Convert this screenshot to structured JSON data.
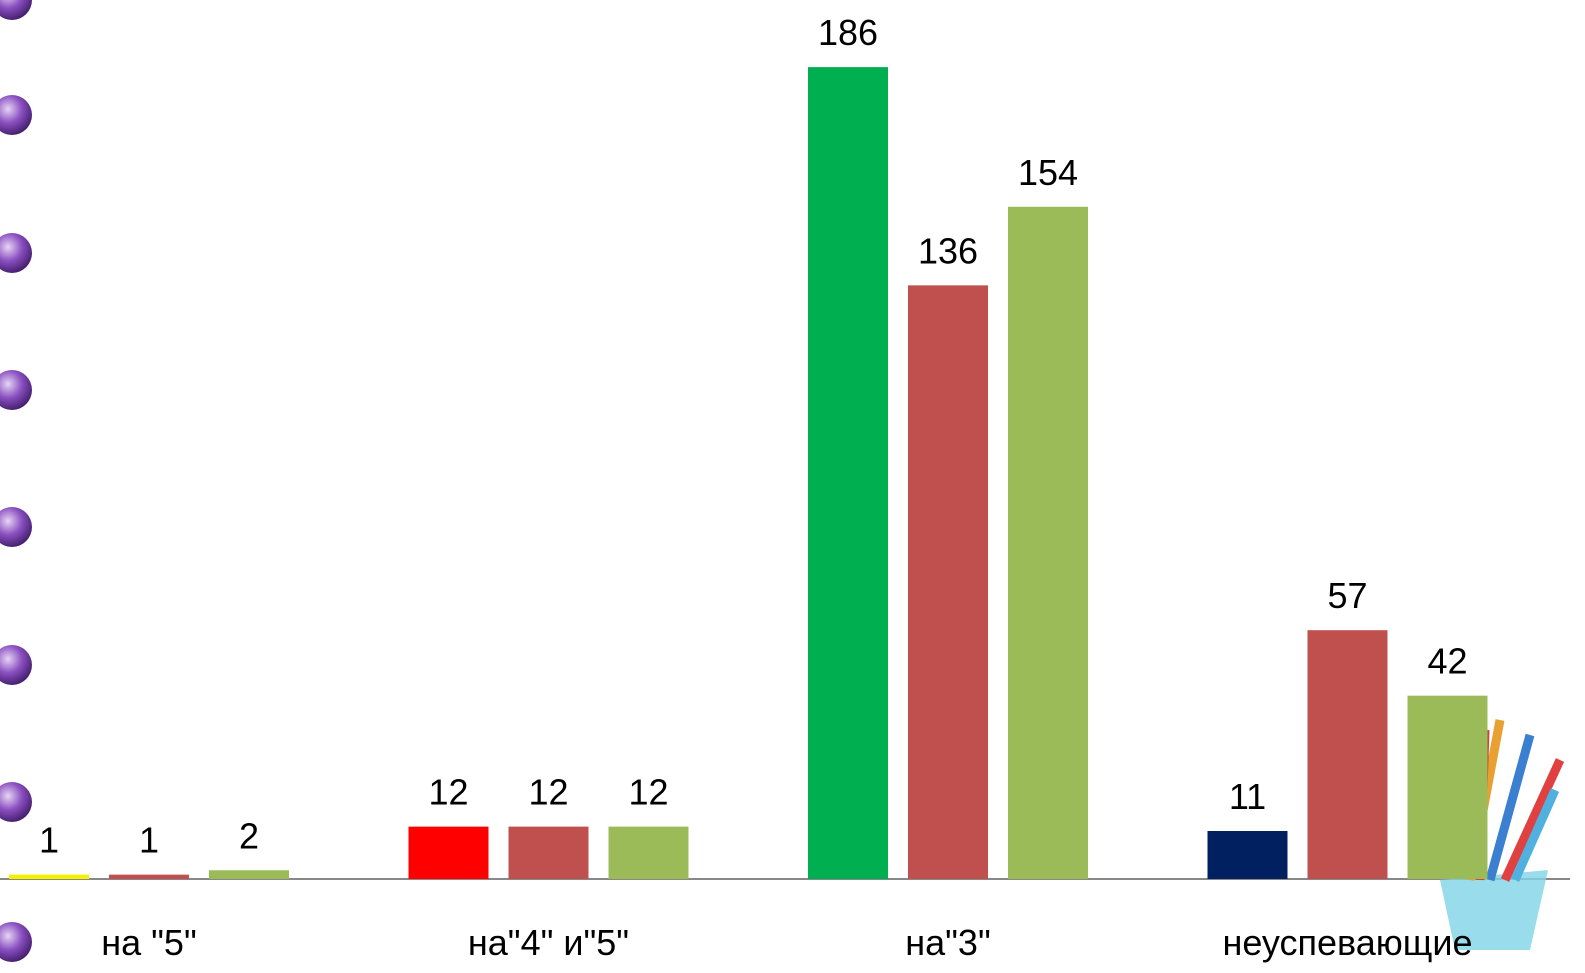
{
  "chart_data": {
    "type": "bar",
    "categories": [
      "на \"5\"",
      "на\"4\" и\"5\"",
      "на\"3\"",
      "неуспевающие"
    ],
    "series": [
      {
        "colors": [
          "#f2f200",
          "#ff0000",
          "#00b050",
          "#002060"
        ],
        "values": [
          1,
          12,
          186,
          11
        ]
      },
      {
        "color": "#c0504d",
        "values": [
          1,
          12,
          136,
          57
        ]
      },
      {
        "color": "#9bbb59",
        "values": [
          2,
          12,
          154,
          42
        ]
      }
    ],
    "ylim": [
      0,
      200
    ]
  }
}
